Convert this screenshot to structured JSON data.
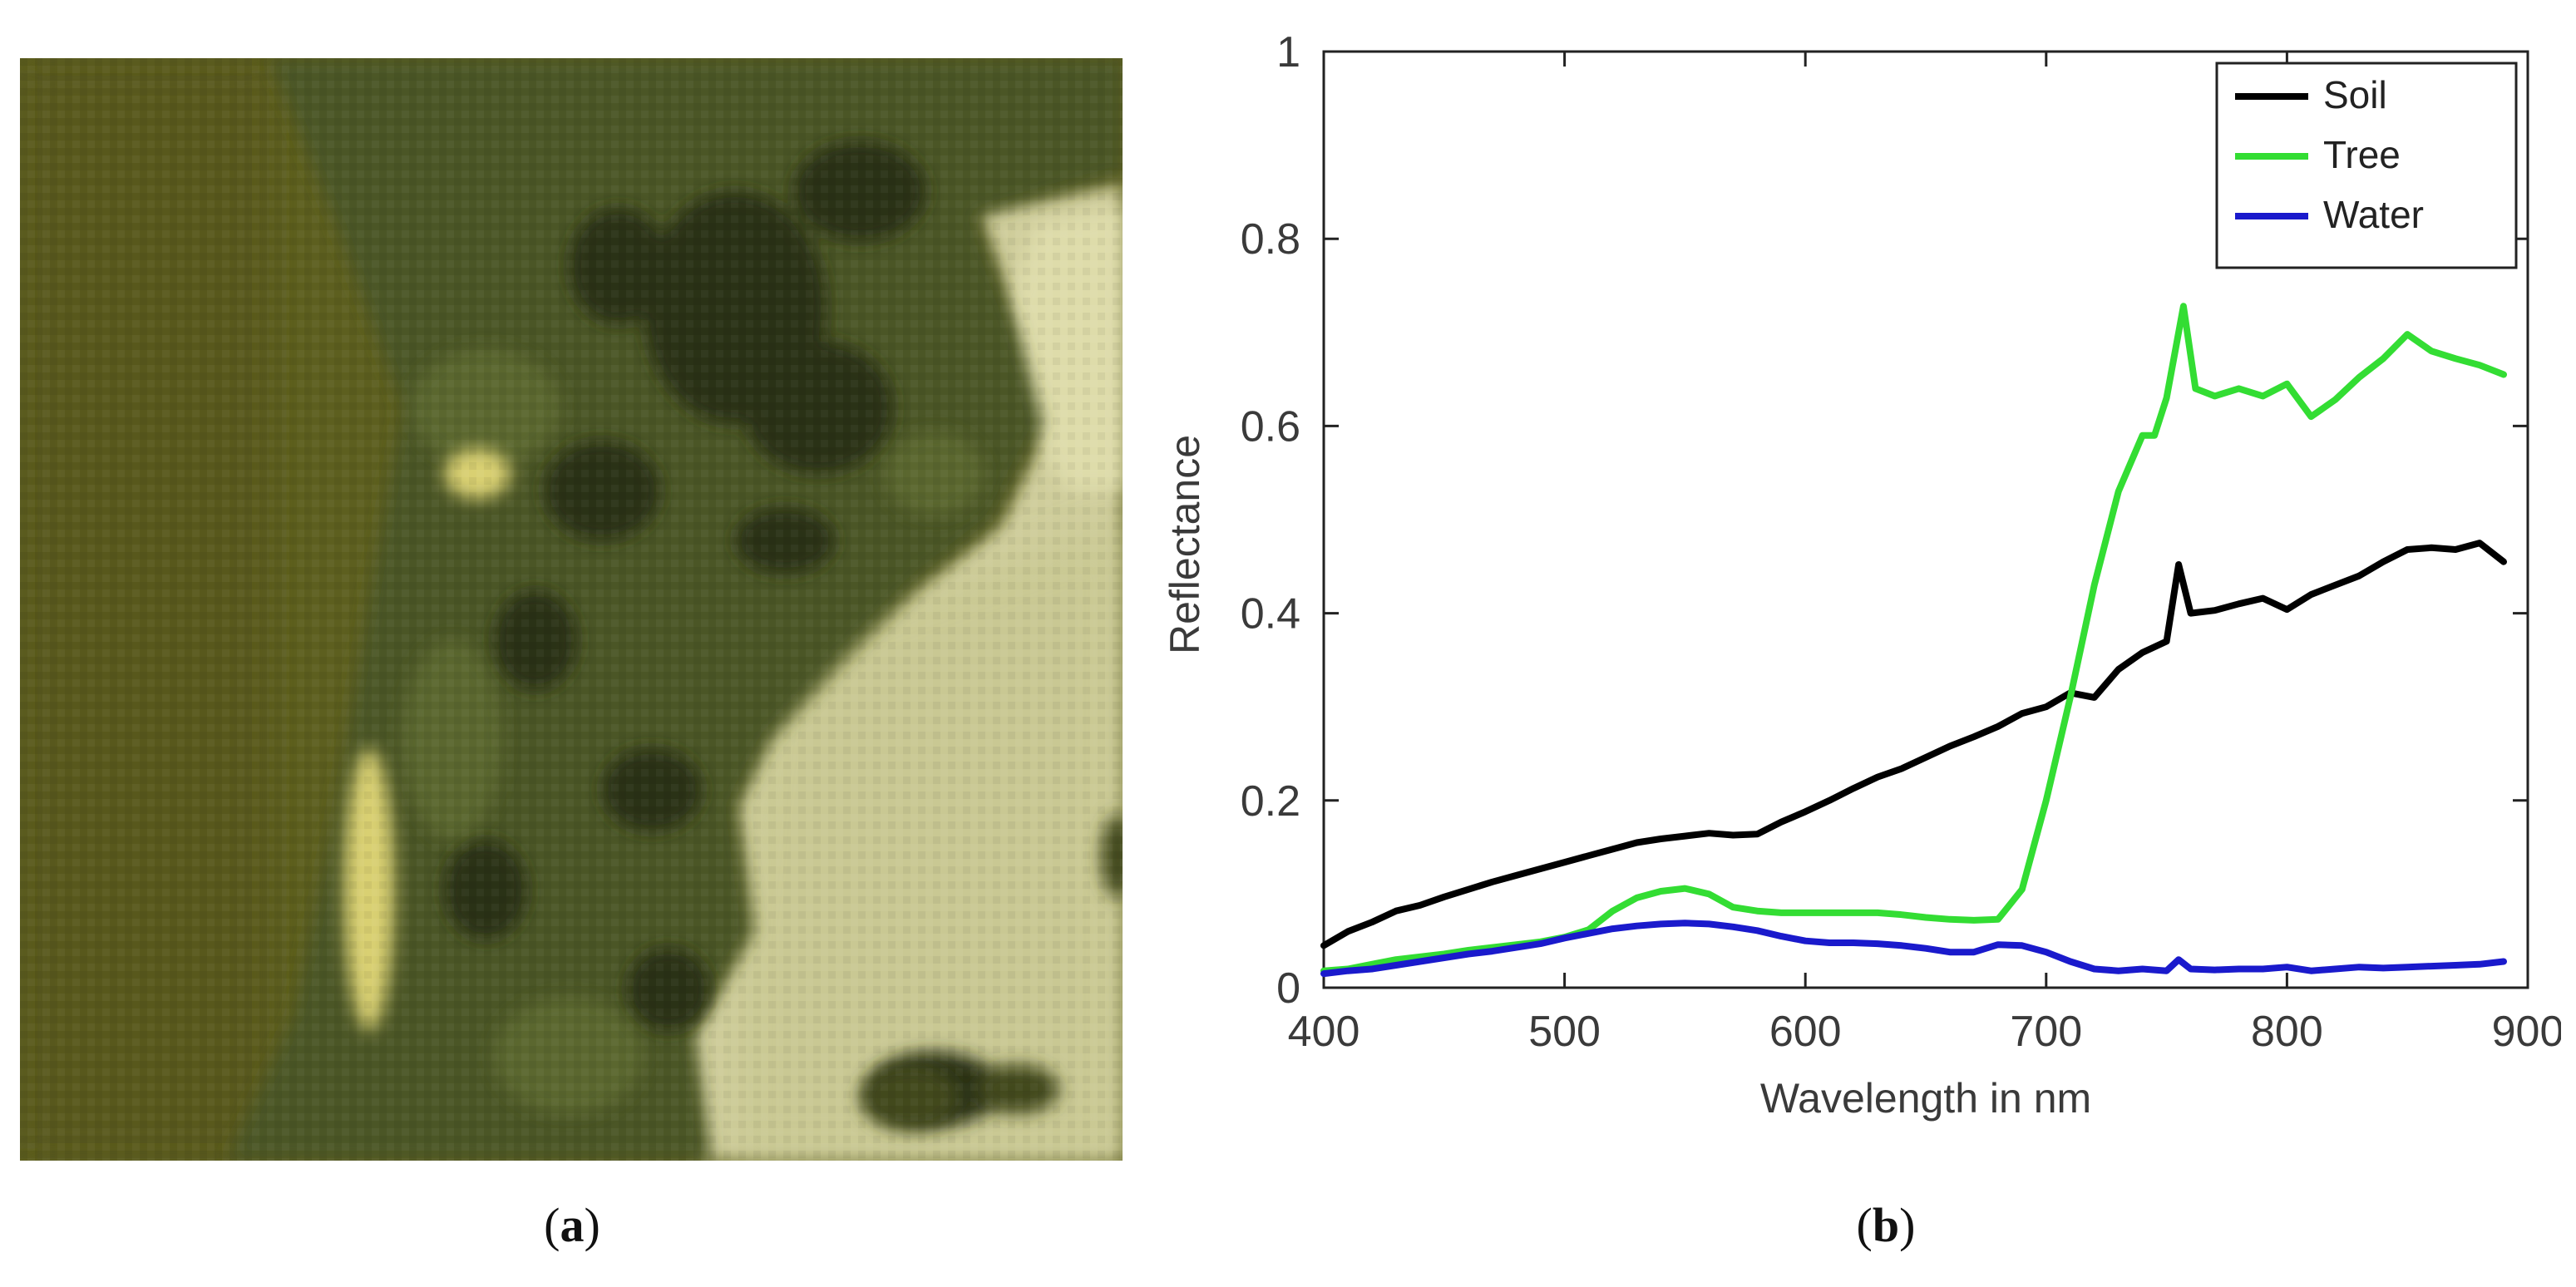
{
  "captions": {
    "a": "a",
    "b": "b"
  },
  "panel_a": {
    "kind": "hyperspectral-rgb-composite",
    "description_colors": {
      "water": "#5c5e1e",
      "tree": "#4a5424",
      "tree_dark": "#2a2f14",
      "soil": "#cdcc9a",
      "soil_bright": "#e4e2b4",
      "highlight": "#d8cf72"
    }
  },
  "chart_data": {
    "type": "line",
    "title": "",
    "xlabel": "Wavelength in nm",
    "ylabel": "Reflectance",
    "xlim": [
      400,
      900
    ],
    "ylim": [
      0,
      1
    ],
    "xticks": [
      400,
      500,
      600,
      700,
      800,
      900
    ],
    "yticks": [
      0,
      0.2,
      0.4,
      0.6,
      0.8,
      1
    ],
    "ytick_labels": [
      "0",
      "0.2",
      "0.4",
      "0.6",
      "0.8",
      "1"
    ],
    "grid": false,
    "legend": "top-right",
    "series": [
      {
        "name": "Soil",
        "color": "#000000",
        "x": [
          400,
          410,
          420,
          430,
          440,
          450,
          460,
          470,
          480,
          490,
          500,
          510,
          520,
          530,
          540,
          550,
          560,
          570,
          580,
          590,
          600,
          610,
          620,
          630,
          640,
          650,
          660,
          670,
          680,
          690,
          700,
          710,
          720,
          730,
          740,
          750,
          755,
          760,
          770,
          780,
          790,
          800,
          810,
          820,
          830,
          840,
          850,
          860,
          870,
          880,
          890
        ],
        "values": [
          0.045,
          0.06,
          0.07,
          0.082,
          0.088,
          0.097,
          0.105,
          0.113,
          0.12,
          0.127,
          0.134,
          0.141,
          0.148,
          0.155,
          0.159,
          0.162,
          0.165,
          0.163,
          0.164,
          0.177,
          0.188,
          0.2,
          0.213,
          0.225,
          0.234,
          0.246,
          0.258,
          0.268,
          0.279,
          0.293,
          0.3,
          0.315,
          0.31,
          0.34,
          0.358,
          0.37,
          0.452,
          0.4,
          0.403,
          0.41,
          0.416,
          0.404,
          0.42,
          0.43,
          0.44,
          0.455,
          0.468,
          0.47,
          0.468,
          0.475,
          0.455
        ]
      },
      {
        "name": "Tree",
        "color": "#33dd33",
        "x": [
          400,
          410,
          420,
          430,
          440,
          450,
          460,
          470,
          480,
          490,
          500,
          510,
          520,
          530,
          540,
          550,
          560,
          570,
          580,
          590,
          600,
          610,
          620,
          630,
          640,
          650,
          660,
          670,
          680,
          690,
          700,
          710,
          720,
          730,
          740,
          745,
          750,
          757,
          762,
          770,
          780,
          790,
          800,
          810,
          820,
          830,
          840,
          850,
          860,
          870,
          880,
          890
        ],
        "values": [
          0.018,
          0.02,
          0.025,
          0.03,
          0.033,
          0.036,
          0.04,
          0.043,
          0.046,
          0.049,
          0.054,
          0.062,
          0.082,
          0.096,
          0.103,
          0.106,
          0.1,
          0.086,
          0.082,
          0.08,
          0.08,
          0.08,
          0.08,
          0.08,
          0.078,
          0.075,
          0.073,
          0.072,
          0.073,
          0.105,
          0.2,
          0.31,
          0.43,
          0.53,
          0.59,
          0.59,
          0.63,
          0.728,
          0.64,
          0.632,
          0.64,
          0.632,
          0.645,
          0.61,
          0.628,
          0.652,
          0.672,
          0.698,
          0.68,
          0.672,
          0.665,
          0.655
        ]
      },
      {
        "name": "Water",
        "color": "#1a1acc",
        "x": [
          400,
          410,
          420,
          430,
          440,
          450,
          460,
          470,
          480,
          490,
          500,
          510,
          520,
          530,
          540,
          550,
          560,
          570,
          580,
          590,
          600,
          610,
          620,
          630,
          640,
          650,
          660,
          670,
          680,
          690,
          700,
          710,
          720,
          730,
          740,
          750,
          755,
          760,
          770,
          780,
          790,
          800,
          810,
          820,
          830,
          840,
          850,
          860,
          870,
          880,
          890
        ],
        "values": [
          0.015,
          0.018,
          0.02,
          0.024,
          0.028,
          0.032,
          0.036,
          0.039,
          0.043,
          0.047,
          0.053,
          0.058,
          0.063,
          0.066,
          0.068,
          0.069,
          0.068,
          0.065,
          0.061,
          0.055,
          0.05,
          0.048,
          0.048,
          0.047,
          0.045,
          0.042,
          0.038,
          0.038,
          0.046,
          0.045,
          0.038,
          0.028,
          0.02,
          0.018,
          0.02,
          0.018,
          0.03,
          0.02,
          0.019,
          0.02,
          0.02,
          0.022,
          0.018,
          0.02,
          0.022,
          0.021,
          0.022,
          0.023,
          0.024,
          0.025,
          0.028
        ]
      }
    ]
  }
}
